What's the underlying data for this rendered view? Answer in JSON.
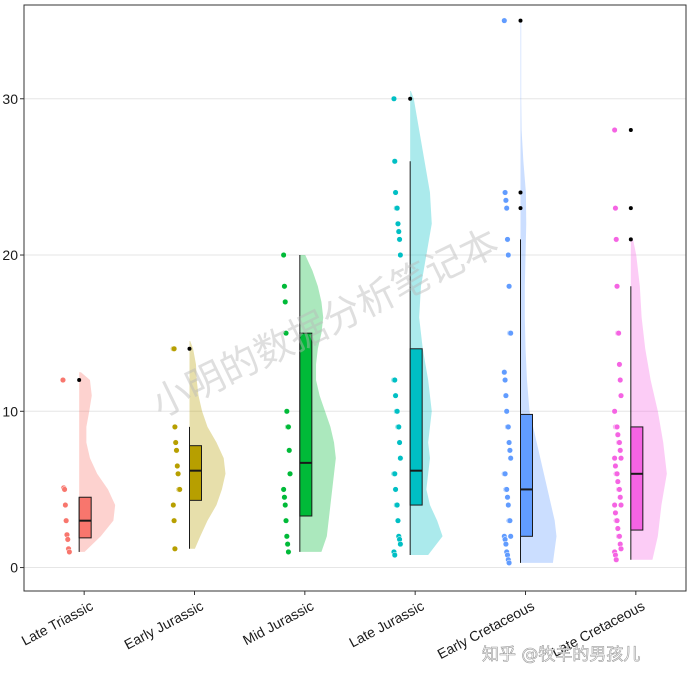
{
  "chart_data": {
    "type": "raincloud",
    "title": "",
    "xlabel": "",
    "ylabel": "",
    "ylim": [
      -1.5,
      36
    ],
    "yticks": [
      0,
      10,
      20,
      30
    ],
    "grid": true,
    "categories": [
      {
        "name": "Late Triassic",
        "color": "#F8766D",
        "box": {
          "min": 1,
          "q1": 1.9,
          "median": 3,
          "q3": 4.5,
          "max": 4.5
        },
        "outliers": [
          12
        ],
        "points": [
          12,
          5.1,
          5,
          4,
          3,
          2.1,
          1.8,
          1.2,
          1
        ],
        "density": [
          [
            1,
            0.15
          ],
          [
            2,
            0.6
          ],
          [
            3,
            0.95
          ],
          [
            4,
            1.0
          ],
          [
            5,
            0.8
          ],
          [
            6,
            0.5
          ],
          [
            7,
            0.3
          ],
          [
            8,
            0.2
          ],
          [
            9,
            0.2
          ],
          [
            10,
            0.28
          ],
          [
            11,
            0.35
          ],
          [
            12,
            0.3
          ],
          [
            12.5,
            0.05
          ]
        ]
      },
      {
        "name": "Early Jurassic",
        "color": "#B79F00",
        "box": {
          "min": 1.2,
          "q1": 4.3,
          "median": 6.2,
          "q3": 7.8,
          "max": 9
        },
        "outliers": [
          14
        ],
        "points": [
          14,
          14,
          9,
          8,
          7.5,
          6.5,
          6,
          5,
          5,
          4,
          3,
          1.2
        ],
        "density": [
          [
            1.2,
            0.15
          ],
          [
            2,
            0.3
          ],
          [
            3,
            0.5
          ],
          [
            4,
            0.75
          ],
          [
            5,
            0.9
          ],
          [
            6,
            1.0
          ],
          [
            7,
            0.95
          ],
          [
            8,
            0.75
          ],
          [
            9,
            0.5
          ],
          [
            10,
            0.35
          ],
          [
            11,
            0.25
          ],
          [
            12,
            0.2
          ],
          [
            13,
            0.18
          ],
          [
            14,
            0.1
          ],
          [
            14.5,
            0.02
          ]
        ]
      },
      {
        "name": "Mid Jurassic",
        "color": "#00BA38",
        "box": {
          "min": 1,
          "q1": 3.3,
          "median": 6.7,
          "q3": 15,
          "max": 20
        },
        "outliers": [],
        "points": [
          20,
          18,
          17,
          15,
          10,
          9,
          9,
          7.5,
          6,
          5,
          4.5,
          4,
          3,
          2,
          1.5,
          1
        ],
        "density": [
          [
            1,
            0.6
          ],
          [
            2,
            0.75
          ],
          [
            3,
            0.8
          ],
          [
            4,
            0.85
          ],
          [
            5,
            0.9
          ],
          [
            6,
            0.95
          ],
          [
            7,
            1.0
          ],
          [
            8,
            0.95
          ],
          [
            9,
            0.85
          ],
          [
            10,
            0.7
          ],
          [
            11,
            0.55
          ],
          [
            12,
            0.45
          ],
          [
            13,
            0.45
          ],
          [
            14,
            0.5
          ],
          [
            15,
            0.6
          ],
          [
            16,
            0.65
          ],
          [
            17,
            0.6
          ],
          [
            18,
            0.5
          ],
          [
            19,
            0.35
          ],
          [
            20,
            0.15
          ]
        ]
      },
      {
        "name": "Late Jurassic",
        "color": "#00BFC4",
        "box": {
          "min": 0.8,
          "q1": 4,
          "median": 6.2,
          "q3": 14,
          "max": 26
        },
        "outliers": [
          30
        ],
        "points": [
          30,
          26,
          24,
          23,
          23,
          22,
          21.5,
          21,
          20,
          12,
          12,
          11,
          10,
          10,
          9,
          9,
          8,
          7,
          6,
          6,
          5,
          4,
          4,
          3,
          2,
          1.8,
          1.5,
          1,
          0.8
        ],
        "density": [
          [
            0.8,
            0.5
          ],
          [
            2,
            0.9
          ],
          [
            3,
            0.75
          ],
          [
            4,
            0.55
          ],
          [
            5,
            0.45
          ],
          [
            6,
            0.5
          ],
          [
            7,
            0.55
          ],
          [
            8,
            0.5
          ],
          [
            9,
            0.55
          ],
          [
            10,
            0.6
          ],
          [
            11,
            0.55
          ],
          [
            12,
            0.5
          ],
          [
            14,
            0.35
          ],
          [
            16,
            0.25
          ],
          [
            18,
            0.3
          ],
          [
            20,
            0.45
          ],
          [
            22,
            0.6
          ],
          [
            24,
            0.55
          ],
          [
            26,
            0.4
          ],
          [
            28,
            0.25
          ],
          [
            30,
            0.1
          ],
          [
            30.5,
            0.02
          ]
        ]
      },
      {
        "name": "Early Cretaceous",
        "color": "#619CFF",
        "box": {
          "min": 0.3,
          "q1": 2,
          "median": 5,
          "q3": 9.8,
          "max": 21
        },
        "outliers": [
          35,
          24,
          23
        ],
        "points": [
          35,
          24,
          23.5,
          23,
          21,
          20,
          18,
          15,
          15,
          12.5,
          12,
          11,
          10,
          9,
          9,
          8,
          7.5,
          7,
          6,
          6,
          5,
          5,
          4.5,
          4,
          3,
          3,
          2,
          2,
          1.8,
          1.5,
          1,
          0.8,
          0.5,
          0.3
        ],
        "density": [
          [
            0.3,
            0.9
          ],
          [
            2,
            1.0
          ],
          [
            3,
            0.95
          ],
          [
            4,
            0.85
          ],
          [
            5,
            0.75
          ],
          [
            6,
            0.65
          ],
          [
            7,
            0.55
          ],
          [
            8,
            0.45
          ],
          [
            9,
            0.35
          ],
          [
            10,
            0.25
          ],
          [
            12,
            0.18
          ],
          [
            14,
            0.14
          ],
          [
            16,
            0.12
          ],
          [
            18,
            0.12
          ],
          [
            20,
            0.14
          ],
          [
            22,
            0.16
          ],
          [
            24,
            0.15
          ],
          [
            26,
            0.08
          ],
          [
            28,
            0.03
          ],
          [
            30,
            0.02
          ],
          [
            32,
            0.02
          ],
          [
            35,
            0.02
          ]
        ]
      },
      {
        "name": "Late Cretaceous",
        "color": "#F564E3",
        "box": {
          "min": 0.5,
          "q1": 2.4,
          "median": 6,
          "q3": 9,
          "max": 18
        },
        "outliers": [
          28,
          23,
          21
        ],
        "points": [
          28,
          23,
          21,
          18,
          15,
          15,
          13,
          12,
          11,
          10,
          9,
          9,
          9,
          8.5,
          8,
          8,
          7.5,
          7,
          7,
          6.5,
          6,
          6,
          5.5,
          5,
          5,
          4.5,
          4,
          4,
          3.5,
          3,
          3,
          2.5,
          2,
          2,
          1.5,
          1.2,
          1,
          0.8,
          0.5
        ],
        "density": [
          [
            0.5,
            0.6
          ],
          [
            2,
            0.75
          ],
          [
            4,
            0.85
          ],
          [
            6,
            1.0
          ],
          [
            8,
            0.9
          ],
          [
            10,
            0.75
          ],
          [
            12,
            0.55
          ],
          [
            14,
            0.4
          ],
          [
            16,
            0.3
          ],
          [
            18,
            0.25
          ],
          [
            19,
            0.2
          ],
          [
            20,
            0.15
          ],
          [
            21,
            0.06
          ]
        ]
      }
    ]
  },
  "watermark": {
    "text": "小明的数据分析笔记本"
  },
  "credit": {
    "text": "知乎 @牧羊的男孩儿"
  }
}
